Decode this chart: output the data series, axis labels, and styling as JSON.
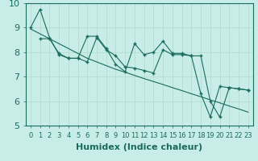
{
  "xlabel": "Humidex (Indice chaleur)",
  "xlim": [
    -0.5,
    23.5
  ],
  "ylim": [
    5,
    10
  ],
  "background_color": "#c8ede8",
  "line_color": "#1a6b5a",
  "grid_color": "#b0d8d0",
  "line1_x": [
    0,
    1,
    2,
    3,
    4,
    5,
    6,
    7,
    8,
    9,
    10,
    11,
    12,
    13,
    14,
    15,
    16,
    17,
    18,
    19,
    20,
    21,
    22,
    23
  ],
  "line1_y": [
    9.0,
    9.75,
    8.6,
    7.9,
    7.75,
    7.75,
    8.65,
    8.65,
    8.15,
    7.5,
    7.2,
    8.35,
    7.9,
    8.0,
    8.45,
    7.95,
    7.95,
    7.85,
    6.3,
    5.35,
    6.6,
    6.55,
    6.5,
    6.45
  ],
  "line2_x": [
    0,
    1,
    2,
    3,
    4,
    5,
    6,
    7,
    8,
    9,
    10,
    11,
    12,
    13,
    14,
    15,
    16,
    17,
    18,
    19,
    20,
    21,
    22,
    23
  ],
  "line2_y": [
    8.95,
    8.75,
    8.55,
    8.35,
    8.15,
    7.95,
    7.75,
    7.6,
    7.45,
    7.3,
    7.18,
    7.05,
    6.92,
    6.8,
    6.68,
    6.55,
    6.43,
    6.3,
    6.18,
    6.05,
    5.93,
    5.8,
    5.68,
    5.55
  ],
  "line3_x": [
    1,
    2,
    3,
    4,
    5,
    6,
    7,
    8,
    9,
    10,
    11,
    12,
    13,
    14,
    15,
    16,
    17,
    18,
    19,
    20,
    21,
    22,
    23
  ],
  "line3_y": [
    8.55,
    8.55,
    7.95,
    7.75,
    7.75,
    7.6,
    8.6,
    8.1,
    7.85,
    7.4,
    7.35,
    7.25,
    7.15,
    8.1,
    7.9,
    7.9,
    7.85,
    7.85,
    6.0,
    5.35,
    6.55,
    6.5,
    6.45
  ],
  "xtick_labels": [
    "0",
    "1",
    "2",
    "3",
    "4",
    "5",
    "6",
    "7",
    "8",
    "9",
    "10",
    "11",
    "12",
    "13",
    "14",
    "15",
    "16",
    "17",
    "18",
    "19",
    "20",
    "21",
    "22",
    "23"
  ],
  "ytick_values": [
    5,
    6,
    7,
    8,
    9,
    10
  ],
  "font_size": 6
}
